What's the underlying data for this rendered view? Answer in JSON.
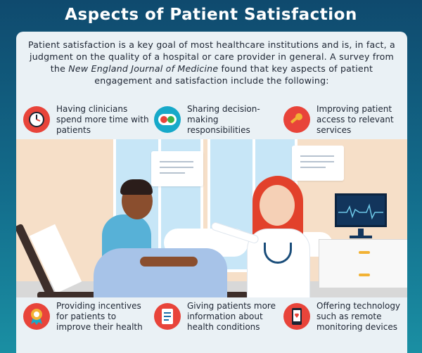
{
  "title": "Aspects of Patient Satisfaction",
  "intro": {
    "part1": "Patient satisfaction is a key goal of most healthcare institutions and is, in fact, a judgment on the quality of a hospital or care provider in general. A survey from the ",
    "journal": "New England Journal of Medicine",
    "part2": " found that key aspects of patient engagement and satisfaction include the following:"
  },
  "aspects_top": [
    {
      "label": "Having clinicians spend more time with patients",
      "icon": "clock-icon"
    },
    {
      "label": "Sharing decision-making responsibilities",
      "icon": "toggle-icon"
    },
    {
      "label": "Improving patient access to relevant services",
      "icon": "key-icon"
    }
  ],
  "aspects_bottom": [
    {
      "label": "Providing incentives for patients to improve their health",
      "icon": "award-ribbon-icon"
    },
    {
      "label": "Giving patients more information about health conditions",
      "icon": "document-icon"
    },
    {
      "label": "Offering technology such as remote monitoring devices",
      "icon": "smartphone-icon"
    }
  ],
  "colors": {
    "accent": "#e8443a",
    "background_top": "#0f4a6e",
    "background_bottom": "#1a8fa3",
    "card": "#eaf1f5"
  }
}
